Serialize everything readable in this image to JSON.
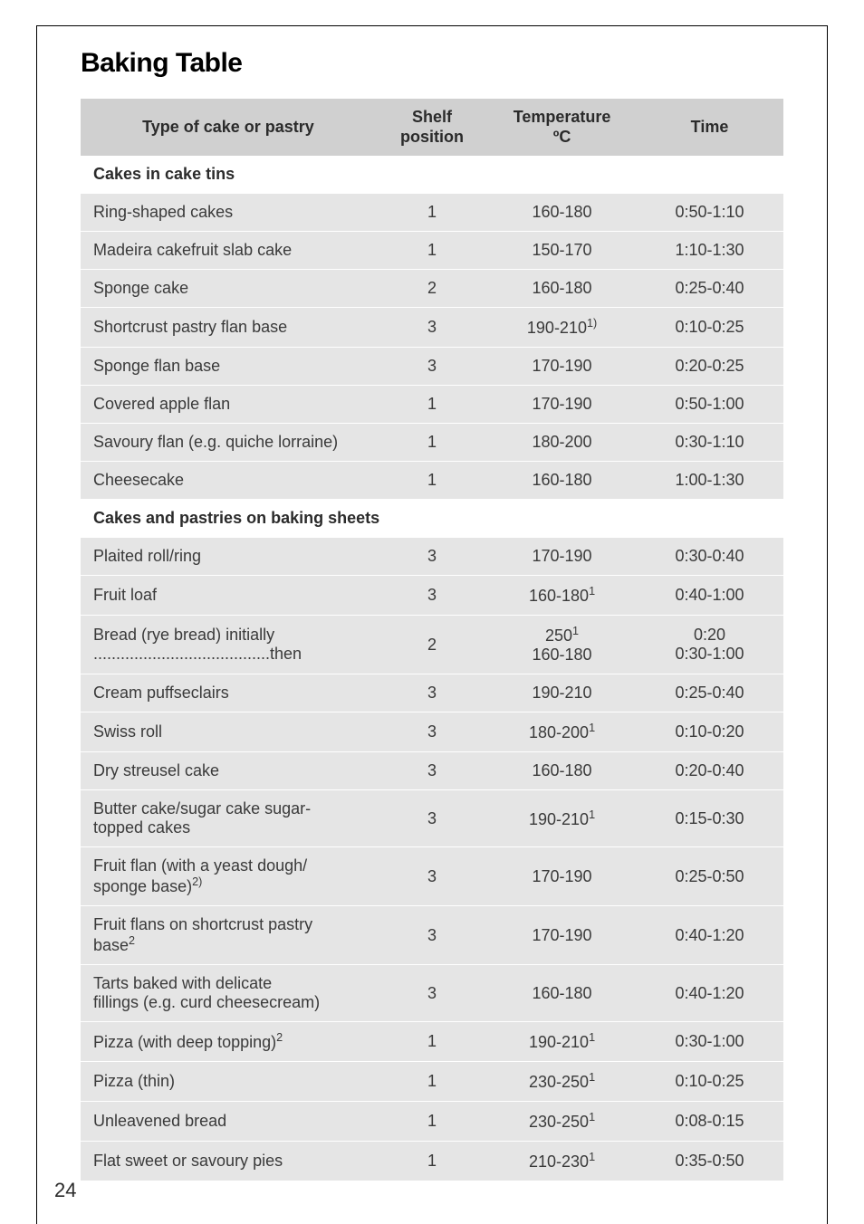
{
  "title": "Baking Table",
  "pageNumber": "24",
  "colors": {
    "headerBg": "#d0d0d0",
    "rowBg": "#e5e5e5",
    "sectionBg": "#ffffff",
    "text": "#3a3a3a",
    "border": "#000000"
  },
  "fonts": {
    "title_size_pt": 22,
    "body_size_pt": 13,
    "header_weight": 700
  },
  "columns": [
    {
      "label": "Type of cake or pastry"
    },
    {
      "labelTop": "Shelf",
      "labelBottom": "position"
    },
    {
      "labelTop": "Temperature",
      "labelBottom": "ºC"
    },
    {
      "label": "Time"
    }
  ],
  "sections": [
    {
      "heading": "Cakes in cake tins",
      "rows": [
        {
          "type": "Ring-shaped cakes",
          "shelf": "1",
          "temp": "160-180",
          "time": "0:50-1:10"
        },
        {
          "type": "Madeira cakefruit slab cake",
          "shelf": "1",
          "temp": "150-170",
          "time": "1:10-1:30"
        },
        {
          "type": "Sponge cake",
          "shelf": "2",
          "temp": "160-180",
          "time": "0:25-0:40"
        },
        {
          "type": "Shortcrust pastry flan base",
          "shelf": "3",
          "temp": "190-210",
          "tempSup": "1)",
          "time": "0:10-0:25"
        },
        {
          "type": "Sponge flan base",
          "shelf": "3",
          "temp": "170-190",
          "time": "0:20-0:25"
        },
        {
          "type": "Covered apple flan",
          "shelf": "1",
          "temp": "170-190",
          "time": "0:50-1:00"
        },
        {
          "type": "Savoury flan (e.g. quiche lorraine)",
          "shelf": "1",
          "temp": "180-200",
          "time": "0:30-1:10"
        },
        {
          "type": "Cheesecake",
          "shelf": "1",
          "temp": "160-180",
          "time": "1:00-1:30"
        }
      ]
    },
    {
      "heading": "Cakes and pastries on baking sheets",
      "rows": [
        {
          "type": "Plaited roll/ring",
          "shelf": "3",
          "temp": "170-190",
          "time": "0:30-0:40"
        },
        {
          "type": "Fruit loaf",
          "shelf": "3",
          "temp": "160-180",
          "tempSup": "1",
          "time": "0:40-1:00"
        },
        {
          "typeTop": "Bread (rye bread) initially",
          "typeBottom": ".......................................then",
          "shelf": "2",
          "tempTop": "250",
          "tempTopSup": "1",
          "tempBottom": "160-180",
          "timeTop": "0:20",
          "timeBottom": "0:30-1:00"
        },
        {
          "type": "Cream puffseclairs",
          "shelf": "3",
          "temp": "190-210",
          "time": "0:25-0:40"
        },
        {
          "type": "Swiss roll",
          "shelf": "3",
          "temp": "180-200",
          "tempSup": "1",
          "time": "0:10-0:20"
        },
        {
          "type": "Dry streusel cake",
          "shelf": "3",
          "temp": "160-180",
          "time": "0:20-0:40"
        },
        {
          "typeTop": "Butter cake/sugar cake sugar-",
          "typeBottom": "topped cakes",
          "shelf": "3",
          "temp": "190-210",
          "tempSup": "1",
          "time": "0:15-0:30"
        },
        {
          "typeTop": "Fruit flan (with a yeast dough/",
          "typeBottom": "sponge base)",
          "typeBottomSup": "2)",
          "shelf": "3",
          "temp": "170-190",
          "time": "0:25-0:50"
        },
        {
          "typeTop": "Fruit flans on shortcrust pastry",
          "typeBottom": "base",
          "typeBottomSup": "2",
          "shelf": "3",
          "temp": "170-190",
          "time": "0:40-1:20"
        },
        {
          "typeTop": "Tarts baked with delicate",
          "typeBottom": "fillings (e.g. curd cheesecream)",
          "shelf": "3",
          "temp": "160-180",
          "time": "0:40-1:20"
        },
        {
          "type": "Pizza (with deep topping)",
          "typeSup": "2",
          "shelf": "1",
          "temp": "190-210",
          "tempSup": "1",
          "time": "0:30-1:00"
        },
        {
          "type": "Pizza (thin)",
          "shelf": "1",
          "temp": "230-250",
          "tempSup": "1",
          "time": "0:10-0:25"
        },
        {
          "type": "Unleavened bread",
          "shelf": "1",
          "temp": "230-250",
          "tempSup": "1",
          "time": "0:08-0:15"
        },
        {
          "type": "Flat sweet or savoury pies",
          "shelf": "1",
          "temp": "210-230",
          "tempSup": "1",
          "time": "0:35-0:50"
        }
      ]
    }
  ]
}
